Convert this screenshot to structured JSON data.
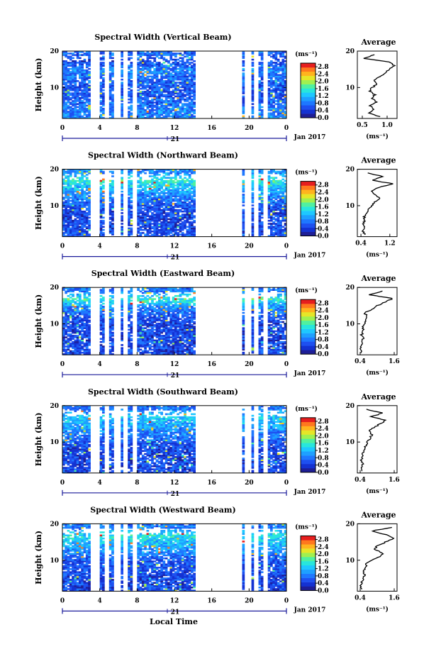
{
  "figure": {
    "xlabel": "Local Time",
    "time_ticks": [
      "0",
      "4",
      "8",
      "12",
      "16",
      "20",
      "0"
    ],
    "date_tick": "21",
    "date_label": "Jan 2017",
    "ylabel": "Height (km)",
    "height_ticks": [
      "20",
      "10"
    ],
    "colorbar_unit": "(ms⁻¹)",
    "colorbar_ticks": [
      "2.8",
      "2.4",
      "2.0",
      "1.6",
      "1.2",
      "0.8",
      "0.4",
      "0.0"
    ],
    "profile_title": "Average",
    "profile_unit": "(ms⁻¹)",
    "colors": {
      "c0": "#1e1e96",
      "c1": "#1432d2",
      "c2": "#1e50f0",
      "c3": "#1e78ff",
      "c4": "#1ea0ff",
      "c5": "#1ec8ff",
      "c6": "#28e6dc",
      "c7": "#50f0a0",
      "c8": "#a0f050",
      "c9": "#e6e628",
      "c10": "#ffb41e",
      "c11": "#ff781e",
      "c12": "#e61e1e"
    }
  },
  "chart_data": [
    {
      "type": "heatmap",
      "title": "Spectral Width (Vertical Beam)",
      "x_label": "Local Time",
      "x_range": [
        0,
        24
      ],
      "y_label": "Height (km)",
      "y_range": [
        1.5,
        20
      ],
      "color_range": [
        0.0,
        3.0
      ],
      "data_gaps_hours": [
        [
          3.0,
          4.1
        ],
        [
          4.4,
          5.1
        ],
        [
          5.4,
          6.2
        ],
        [
          6.5,
          7.1
        ],
        [
          7.4,
          8.1
        ],
        [
          14.2,
          19.2
        ],
        [
          19.6,
          20.2
        ],
        [
          20.6,
          21.1
        ],
        [
          21.4,
          22.1
        ]
      ],
      "typical_width_by_height": {
        "heights_km": [
          2,
          5,
          8,
          10,
          12,
          15,
          17,
          19
        ],
        "width": [
          0.9,
          0.8,
          0.6,
          0.6,
          0.7,
          0.9,
          0.5,
          0.7
        ]
      },
      "profile": {
        "title": "Average",
        "x_ticks": [
          "0.5",
          "1.0"
        ],
        "x_range": [
          0.4,
          1.2
        ],
        "y_ticks": [
          "20",
          "10"
        ],
        "heights_km": [
          2,
          3,
          4,
          5,
          6,
          7,
          8,
          9,
          10,
          11,
          12,
          13,
          14,
          15,
          16,
          17,
          18,
          19
        ],
        "mean_width": [
          0.85,
          0.65,
          0.75,
          0.65,
          0.8,
          0.7,
          0.75,
          0.65,
          0.7,
          0.8,
          0.75,
          0.85,
          0.95,
          1.05,
          1.15,
          1.05,
          0.55,
          0.75
        ]
      }
    },
    {
      "type": "heatmap",
      "title": "Spectral Width (Northward Beam)",
      "x_label": "Local Time",
      "x_range": [
        0,
        24
      ],
      "y_label": "Height (km)",
      "y_range": [
        1.5,
        20
      ],
      "color_range": [
        0.0,
        3.0
      ],
      "data_gaps_hours": [
        [
          3.1,
          4.1
        ],
        [
          4.4,
          5.1
        ],
        [
          5.4,
          6.2
        ],
        [
          6.5,
          7.1
        ],
        [
          7.4,
          8.1
        ],
        [
          14.2,
          19.2
        ],
        [
          19.6,
          20.2
        ],
        [
          20.6,
          21.1
        ],
        [
          21.4,
          22.1
        ]
      ],
      "typical_width_by_height": {
        "heights_km": [
          2,
          5,
          8,
          10,
          12,
          15,
          17,
          19
        ],
        "width": [
          0.6,
          0.5,
          0.5,
          0.6,
          0.8,
          1.2,
          1.6,
          0.9
        ]
      },
      "profile": {
        "title": "Average",
        "x_ticks": [
          "0.4",
          "1.2"
        ],
        "x_range": [
          0.3,
          1.4
        ],
        "y_ticks": [
          "20",
          "10"
        ],
        "heights_km": [
          2,
          3,
          4,
          5,
          6,
          7,
          8,
          9,
          10,
          11,
          12,
          13,
          14,
          15,
          16,
          17,
          18,
          19
        ],
        "mean_width": [
          0.5,
          0.45,
          0.5,
          0.45,
          0.5,
          0.5,
          0.55,
          0.6,
          0.7,
          0.8,
          0.9,
          0.8,
          0.7,
          0.9,
          1.3,
          0.7,
          1.0,
          0.6
        ]
      }
    },
    {
      "type": "heatmap",
      "title": "Spectral Width (Eastward Beam)",
      "x_label": "Local Time",
      "x_range": [
        0,
        24
      ],
      "y_label": "Height (km)",
      "y_range": [
        1.5,
        20
      ],
      "color_range": [
        0.0,
        3.0
      ],
      "data_gaps_hours": [
        [
          3.1,
          4.1
        ],
        [
          4.4,
          5.1
        ],
        [
          5.4,
          6.2
        ],
        [
          6.5,
          7.1
        ],
        [
          7.4,
          8.1
        ],
        [
          14.2,
          19.2
        ],
        [
          19.6,
          20.2
        ],
        [
          20.6,
          21.1
        ],
        [
          21.4,
          22.1
        ]
      ],
      "typical_width_by_height": {
        "heights_km": [
          2,
          5,
          8,
          10,
          12,
          15,
          17,
          19
        ],
        "width": [
          0.5,
          0.5,
          0.5,
          0.5,
          0.6,
          1.0,
          1.6,
          0.8
        ]
      },
      "profile": {
        "title": "Average",
        "x_ticks": [
          "0.4",
          "1.6"
        ],
        "x_range": [
          0.3,
          1.7
        ],
        "y_ticks": [
          "20",
          "10"
        ],
        "heights_km": [
          2,
          3,
          4,
          5,
          6,
          7,
          8,
          9,
          10,
          11,
          12,
          13,
          14,
          15,
          16,
          17,
          18,
          19
        ],
        "mean_width": [
          0.45,
          0.4,
          0.45,
          0.45,
          0.5,
          0.45,
          0.5,
          0.5,
          0.55,
          0.6,
          0.65,
          0.55,
          0.8,
          1.0,
          1.3,
          1.55,
          0.7,
          1.2
        ]
      }
    },
    {
      "type": "heatmap",
      "title": "Spectral Width (Southward Beam)",
      "x_label": "Local Time",
      "x_range": [
        0,
        24
      ],
      "y_label": "Height (km)",
      "y_range": [
        1.5,
        20
      ],
      "color_range": [
        0.0,
        3.0
      ],
      "data_gaps_hours": [
        [
          3.1,
          4.1
        ],
        [
          4.4,
          5.1
        ],
        [
          5.4,
          6.2
        ],
        [
          6.5,
          7.1
        ],
        [
          7.4,
          8.1
        ],
        [
          14.2,
          19.2
        ],
        [
          19.6,
          20.2
        ],
        [
          20.6,
          21.1
        ],
        [
          21.4,
          22.1
        ]
      ],
      "typical_width_by_height": {
        "heights_km": [
          2,
          5,
          8,
          10,
          12,
          15,
          17,
          19
        ],
        "width": [
          0.5,
          0.5,
          0.5,
          0.6,
          0.8,
          1.1,
          1.3,
          0.8
        ]
      },
      "profile": {
        "title": "Average",
        "x_ticks": [
          "0.4",
          "1.6"
        ],
        "x_range": [
          0.3,
          1.7
        ],
        "y_ticks": [
          "20",
          "10"
        ],
        "heights_km": [
          2,
          3,
          4,
          5,
          6,
          7,
          8,
          9,
          10,
          11,
          12,
          13,
          14,
          15,
          16,
          17,
          18,
          19
        ],
        "mean_width": [
          0.45,
          0.45,
          0.5,
          0.45,
          0.5,
          0.5,
          0.55,
          0.6,
          0.65,
          0.75,
          0.8,
          0.7,
          0.9,
          1.1,
          1.3,
          0.8,
          1.2,
          0.6
        ]
      }
    },
    {
      "type": "heatmap",
      "title": "Spectral Width (Westward Beam)",
      "x_label": "Local Time",
      "x_range": [
        0,
        24
      ],
      "y_label": "Height (km)",
      "y_range": [
        1.5,
        20
      ],
      "color_range": [
        0.0,
        3.0
      ],
      "data_gaps_hours": [
        [
          3.1,
          4.1
        ],
        [
          4.4,
          5.1
        ],
        [
          5.4,
          6.2
        ],
        [
          6.5,
          7.1
        ],
        [
          7.4,
          8.1
        ],
        [
          14.2,
          19.2
        ],
        [
          19.6,
          20.2
        ],
        [
          20.6,
          21.1
        ],
        [
          21.4,
          22.1
        ]
      ],
      "typical_width_by_height": {
        "heights_km": [
          2,
          5,
          8,
          10,
          12,
          15,
          17,
          19
        ],
        "width": [
          0.5,
          0.5,
          0.6,
          0.6,
          0.9,
          1.2,
          1.5,
          0.8
        ]
      },
      "profile": {
        "title": "Average",
        "x_ticks": [
          "0.4",
          "1.6"
        ],
        "x_range": [
          0.3,
          1.7
        ],
        "y_ticks": [
          "20",
          "10"
        ],
        "heights_km": [
          2,
          3,
          4,
          5,
          6,
          7,
          8,
          9,
          10,
          11,
          12,
          13,
          14,
          15,
          16,
          17,
          18,
          19
        ],
        "mean_width": [
          0.45,
          0.4,
          0.45,
          0.5,
          0.55,
          0.5,
          0.6,
          0.6,
          0.8,
          1.1,
          1.2,
          0.9,
          1.0,
          1.3,
          1.6,
          1.3,
          0.8,
          1.5
        ]
      }
    }
  ]
}
